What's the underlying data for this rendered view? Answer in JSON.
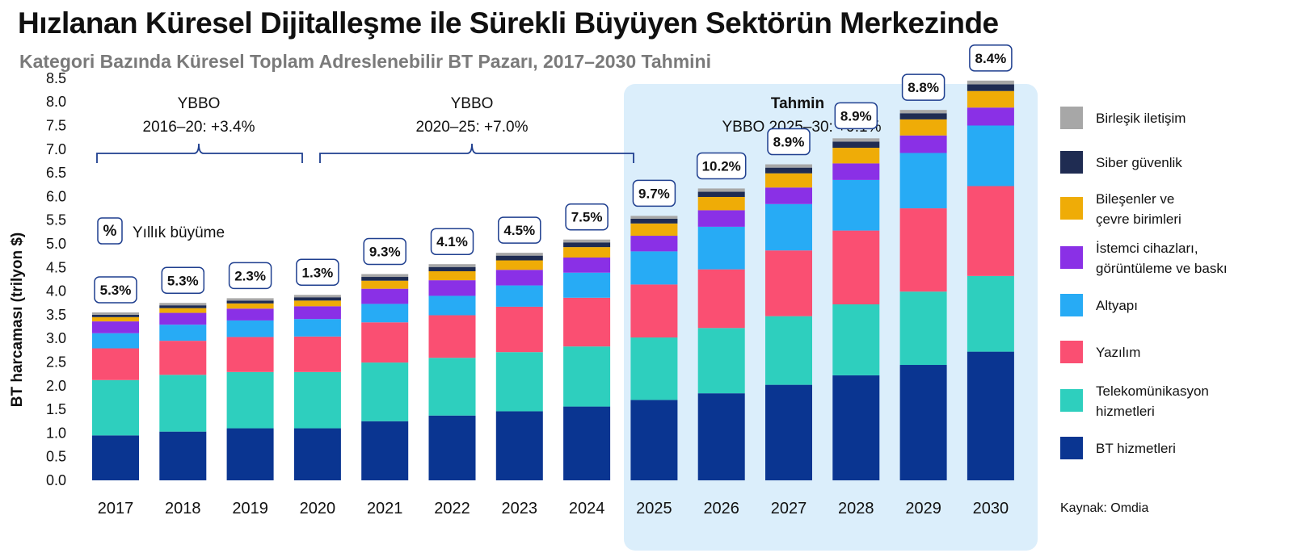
{
  "title": "Hızlanan Küresel Dijitalleşme ile Sürekli Büyüyen Sektörün Merkezinde",
  "subtitle": "Kategori Bazında Küresel Toplam Adreslenebilir BT Pazarı, 2017–2030 Tahmini",
  "source": "Kaynak: Omdia",
  "growth_legend": {
    "symbol": "%",
    "label": "Yıllık büyüme"
  },
  "forecast": {
    "title": "Tahmin",
    "cagr": "YBBO 2025–30: +9.1%"
  },
  "periods": [
    {
      "line1": "YBBO",
      "line2": "2016–20: +3.4%"
    },
    {
      "line1": "YBBO",
      "line2": "2020–25: +7.0%"
    }
  ],
  "colors": {
    "it_services": "#0a3591",
    "telecom": "#2ecfbe",
    "software": "#fa4f72",
    "infrastructure": "#27abf5",
    "client_devices": "#8a30e6",
    "components": "#efac07",
    "security": "#1f2c52",
    "communications": "#a7a7a7",
    "forecast_bg": "#dbeefb"
  },
  "chart_data": {
    "type": "bar",
    "stacked": true,
    "ylabel": "BT harcaması (trilyon $)",
    "ylim": [
      0,
      8.5
    ],
    "yticks": [
      "0.0",
      "0.5",
      "1.0",
      "1.5",
      "2.0",
      "2.5",
      "3.0",
      "3.5",
      "4.0",
      "4.5",
      "5.0",
      "5.5",
      "6.0",
      "6.5",
      "7.0",
      "7.5",
      "8.0",
      "8.5"
    ],
    "categories": [
      "2017",
      "2018",
      "2019",
      "2020",
      "2021",
      "2022",
      "2023",
      "2024",
      "2025",
      "2026",
      "2027",
      "2028",
      "2029",
      "2030"
    ],
    "growth_labels": [
      "5.3%",
      "5.3%",
      "2.3%",
      "1.3%",
      "9.3%",
      "4.1%",
      "4.5%",
      "7.5%",
      "9.7%",
      "10.2%",
      "8.9%",
      "8.9%",
      "8.8%",
      "8.4%"
    ],
    "legend_position": "right",
    "series": [
      {
        "name": "BT hizmetleri",
        "color_key": "it_services",
        "values": [
          0.95,
          1.03,
          1.1,
          1.1,
          1.25,
          1.37,
          1.46,
          1.56,
          1.7,
          1.84,
          2.02,
          2.22,
          2.44,
          2.72
        ]
      },
      {
        "name": "Telekomünikasyon hizmetleri",
        "color_key": "telecom",
        "values": [
          1.17,
          1.2,
          1.19,
          1.19,
          1.24,
          1.22,
          1.25,
          1.27,
          1.32,
          1.38,
          1.45,
          1.5,
          1.55,
          1.6
        ]
      },
      {
        "name": "Yazılım",
        "color_key": "software",
        "values": [
          0.67,
          0.72,
          0.74,
          0.75,
          0.85,
          0.9,
          0.96,
          1.03,
          1.12,
          1.24,
          1.39,
          1.56,
          1.76,
          1.9
        ]
      },
      {
        "name": "Altyapı",
        "color_key": "infrastructure",
        "values": [
          0.32,
          0.34,
          0.35,
          0.37,
          0.39,
          0.41,
          0.45,
          0.53,
          0.7,
          0.9,
          0.98,
          1.07,
          1.17,
          1.28
        ]
      },
      {
        "name": "İstemci cihazları, görüntüleme ve baskı",
        "color_key": "client_devices",
        "values": [
          0.25,
          0.25,
          0.25,
          0.27,
          0.32,
          0.33,
          0.33,
          0.32,
          0.33,
          0.35,
          0.35,
          0.35,
          0.37,
          0.38
        ]
      },
      {
        "name": "Bileşenler ve çevre birimleri",
        "color_key": "components",
        "values": [
          0.09,
          0.1,
          0.11,
          0.12,
          0.17,
          0.19,
          0.2,
          0.22,
          0.26,
          0.28,
          0.3,
          0.33,
          0.34,
          0.35
        ]
      },
      {
        "name": "Siber güvenlik",
        "color_key": "security",
        "values": [
          0.05,
          0.06,
          0.06,
          0.07,
          0.08,
          0.09,
          0.1,
          0.1,
          0.1,
          0.11,
          0.12,
          0.13,
          0.13,
          0.14
        ]
      },
      {
        "name": "Birleşik iletişim",
        "color_key": "communications",
        "values": [
          0.05,
          0.05,
          0.05,
          0.05,
          0.06,
          0.06,
          0.06,
          0.06,
          0.06,
          0.07,
          0.07,
          0.07,
          0.07,
          0.08
        ]
      }
    ]
  }
}
